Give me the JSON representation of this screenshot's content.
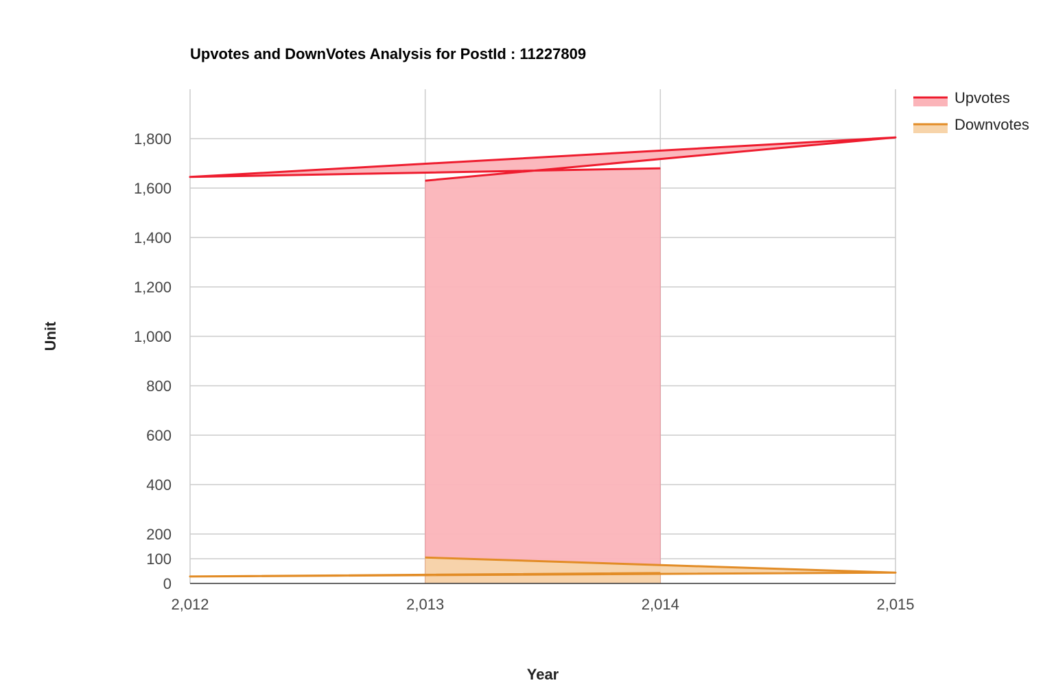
{
  "chart_data": {
    "type": "area",
    "title": "Upvotes and DownVotes Analysis for PostId : 11227809",
    "xlabel": "Year",
    "ylabel": "Unit",
    "xlim": [
      2012,
      2015
    ],
    "ylim": [
      0,
      2000
    ],
    "x_ticks": [
      2012,
      2013,
      2014,
      2015
    ],
    "x_tick_labels": [
      "2,012",
      "2,013",
      "2,014",
      "2,015"
    ],
    "y_ticks": [
      0,
      100,
      200,
      400,
      600,
      800,
      1000,
      1200,
      1400,
      1600,
      1800
    ],
    "y_tick_labels": [
      "0",
      "100",
      "200",
      "400",
      "600",
      "800",
      "1,000",
      "1,200",
      "1,400",
      "1,600",
      "1,800"
    ],
    "grid": true,
    "legend_position": "right",
    "series": [
      {
        "name": "Upvotes",
        "color": "#ee1c2e",
        "fill_color": "#fbb4b9",
        "points": [
          {
            "x": 2014,
            "y": 1680
          },
          {
            "x": 2012,
            "y": 1645
          },
          {
            "x": 2015,
            "y": 1805
          },
          {
            "x": 2013,
            "y": 1630
          }
        ]
      },
      {
        "name": "Downvotes",
        "color": "#e28c26",
        "fill_color": "#f7d4aa",
        "points": [
          {
            "x": 2014,
            "y": 42
          },
          {
            "x": 2012,
            "y": 28
          },
          {
            "x": 2015,
            "y": 44
          },
          {
            "x": 2013,
            "y": 105
          }
        ]
      }
    ]
  }
}
